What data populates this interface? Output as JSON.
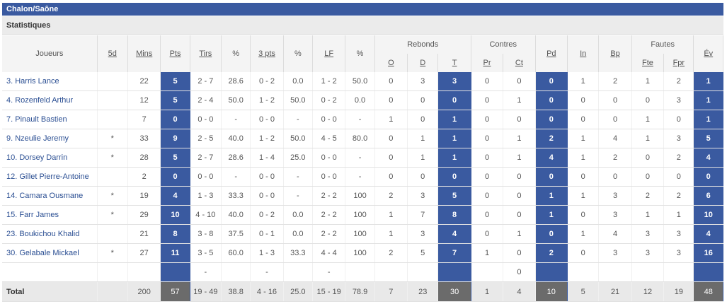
{
  "team_name": "Chalon/Saône",
  "section_title": "Statistiques",
  "headers": {
    "joueurs": "Joueurs",
    "five": "5d",
    "mins": "Mins",
    "pts": "Pts",
    "tirs": "Tirs",
    "pct1": "%",
    "three": "3 pts",
    "pct2": "%",
    "lf": "LF",
    "pct3": "%",
    "rebonds": "Rebonds",
    "reb_o": "O",
    "reb_d": "D",
    "reb_t": "T",
    "contres": "Contres",
    "contres_pr": "Pr",
    "contres_ct": "Ct",
    "pd": "Pd",
    "in": "In",
    "bp": "Bp",
    "fautes": "Fautes",
    "fautes_fte": "Fte",
    "fautes_fpr": "Fpr",
    "ev": "Év"
  },
  "rows": [
    {
      "name": "3. Harris Lance",
      "five": "",
      "mins": "22",
      "pts": "5",
      "tirs": "2 - 7",
      "pct1": "28.6",
      "three": "0 - 2",
      "pct2": "0.0",
      "lf": "1 - 2",
      "pct3": "50.0",
      "o": "0",
      "d": "3",
      "t": "3",
      "pr": "0",
      "ct": "0",
      "pd": "0",
      "in": "1",
      "bp": "2",
      "fte": "1",
      "fpr": "2",
      "ev": "1"
    },
    {
      "name": "4. Rozenfeld Arthur",
      "five": "",
      "mins": "12",
      "pts": "5",
      "tirs": "2 - 4",
      "pct1": "50.0",
      "three": "1 - 2",
      "pct2": "50.0",
      "lf": "0 - 2",
      "pct3": "0.0",
      "o": "0",
      "d": "0",
      "t": "0",
      "pr": "0",
      "ct": "1",
      "pd": "0",
      "in": "0",
      "bp": "0",
      "fte": "0",
      "fpr": "3",
      "ev": "1"
    },
    {
      "name": "7. Pinault Bastien",
      "five": "",
      "mins": "7",
      "pts": "0",
      "tirs": "0 - 0",
      "pct1": "-",
      "three": "0 - 0",
      "pct2": "-",
      "lf": "0 - 0",
      "pct3": "-",
      "o": "1",
      "d": "0",
      "t": "1",
      "pr": "0",
      "ct": "0",
      "pd": "0",
      "in": "0",
      "bp": "0",
      "fte": "1",
      "fpr": "0",
      "ev": "1"
    },
    {
      "name": "9. Nzeulie Jeremy",
      "five": "*",
      "mins": "33",
      "pts": "9",
      "tirs": "2 - 5",
      "pct1": "40.0",
      "three": "1 - 2",
      "pct2": "50.0",
      "lf": "4 - 5",
      "pct3": "80.0",
      "o": "0",
      "d": "1",
      "t": "1",
      "pr": "0",
      "ct": "1",
      "pd": "2",
      "in": "1",
      "bp": "4",
      "fte": "1",
      "fpr": "3",
      "ev": "5"
    },
    {
      "name": "10. Dorsey Darrin",
      "five": "*",
      "mins": "28",
      "pts": "5",
      "tirs": "2 - 7",
      "pct1": "28.6",
      "three": "1 - 4",
      "pct2": "25.0",
      "lf": "0 - 0",
      "pct3": "-",
      "o": "0",
      "d": "1",
      "t": "1",
      "pr": "0",
      "ct": "1",
      "pd": "4",
      "in": "1",
      "bp": "2",
      "fte": "0",
      "fpr": "2",
      "ev": "4"
    },
    {
      "name": "12. Gillet Pierre-Antoine",
      "five": "",
      "mins": "2",
      "pts": "0",
      "tirs": "0 - 0",
      "pct1": "-",
      "three": "0 - 0",
      "pct2": "-",
      "lf": "0 - 0",
      "pct3": "-",
      "o": "0",
      "d": "0",
      "t": "0",
      "pr": "0",
      "ct": "0",
      "pd": "0",
      "in": "0",
      "bp": "0",
      "fte": "0",
      "fpr": "0",
      "ev": "0"
    },
    {
      "name": "14. Camara Ousmane",
      "five": "*",
      "mins": "19",
      "pts": "4",
      "tirs": "1 - 3",
      "pct1": "33.3",
      "three": "0 - 0",
      "pct2": "-",
      "lf": "2 - 2",
      "pct3": "100",
      "o": "2",
      "d": "3",
      "t": "5",
      "pr": "0",
      "ct": "0",
      "pd": "1",
      "in": "1",
      "bp": "3",
      "fte": "2",
      "fpr": "2",
      "ev": "6"
    },
    {
      "name": "15. Farr James",
      "five": "*",
      "mins": "29",
      "pts": "10",
      "tirs": "4 - 10",
      "pct1": "40.0",
      "three": "0 - 2",
      "pct2": "0.0",
      "lf": "2 - 2",
      "pct3": "100",
      "o": "1",
      "d": "7",
      "t": "8",
      "pr": "0",
      "ct": "0",
      "pd": "1",
      "in": "0",
      "bp": "3",
      "fte": "1",
      "fpr": "1",
      "ev": "10"
    },
    {
      "name": "23. Boukichou Khalid",
      "five": "",
      "mins": "21",
      "pts": "8",
      "tirs": "3 - 8",
      "pct1": "37.5",
      "three": "0 - 1",
      "pct2": "0.0",
      "lf": "2 - 2",
      "pct3": "100",
      "o": "1",
      "d": "3",
      "t": "4",
      "pr": "0",
      "ct": "1",
      "pd": "0",
      "in": "1",
      "bp": "4",
      "fte": "3",
      "fpr": "3",
      "ev": "4"
    },
    {
      "name": "30. Gelabale Mickael",
      "five": "*",
      "mins": "27",
      "pts": "11",
      "tirs": "3 - 5",
      "pct1": "60.0",
      "three": "1 - 3",
      "pct2": "33.3",
      "lf": "4 - 4",
      "pct3": "100",
      "o": "2",
      "d": "5",
      "t": "7",
      "pr": "1",
      "ct": "0",
      "pd": "2",
      "in": "0",
      "bp": "3",
      "fte": "3",
      "fpr": "3",
      "ev": "16"
    }
  ],
  "team_row": {
    "tirs": "-",
    "three": "-",
    "lf": "-",
    "ct": "0"
  },
  "total": {
    "label": "Total",
    "mins": "200",
    "pts": "57",
    "tirs": "19 - 49",
    "pct1": "38.8",
    "three": "4 - 16",
    "pct2": "25.0",
    "lf": "15 - 19",
    "pct3": "78.9",
    "o": "7",
    "d": "23",
    "t": "30",
    "pr": "1",
    "ct": "4",
    "pd": "10",
    "in": "5",
    "bp": "21",
    "fte": "12",
    "fpr": "19",
    "ev": "48"
  },
  "colors": {
    "accent": "#3a5aa0",
    "total_highlight": "#6b6b6b"
  }
}
